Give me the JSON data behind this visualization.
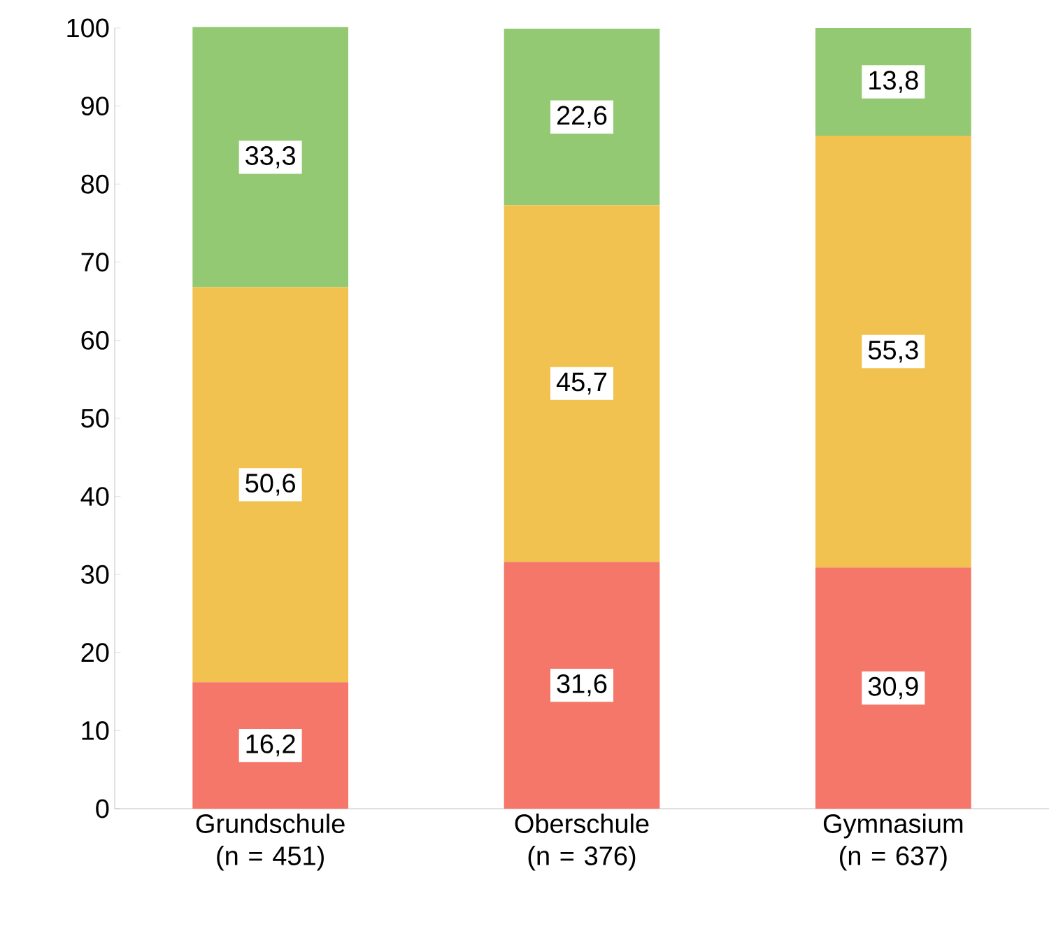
{
  "chart_data": {
    "type": "bar",
    "stacked": true,
    "categories": [
      "Grundschule (n = 451)",
      "Oberschule (n = 376)",
      "Gymnasium (n = 637)"
    ],
    "series": [
      {
        "color": "#f4776a",
        "values": [
          16.2,
          31.6,
          30.9
        ],
        "value_labels": [
          "16,2",
          "31,6",
          "30,9"
        ]
      },
      {
        "color": "#f2c250",
        "values": [
          50.6,
          45.7,
          55.3
        ],
        "value_labels": [
          "50,6",
          "45,7",
          "55,3"
        ]
      },
      {
        "color": "#93c972",
        "values": [
          33.3,
          22.6,
          13.8
        ],
        "value_labels": [
          "33,3",
          "22,6",
          "13,8"
        ]
      }
    ],
    "ylim": [
      0,
      100
    ],
    "yticks": [
      0,
      10,
      20,
      30,
      40,
      50,
      60,
      70,
      80,
      90,
      100
    ],
    "grid": false
  }
}
